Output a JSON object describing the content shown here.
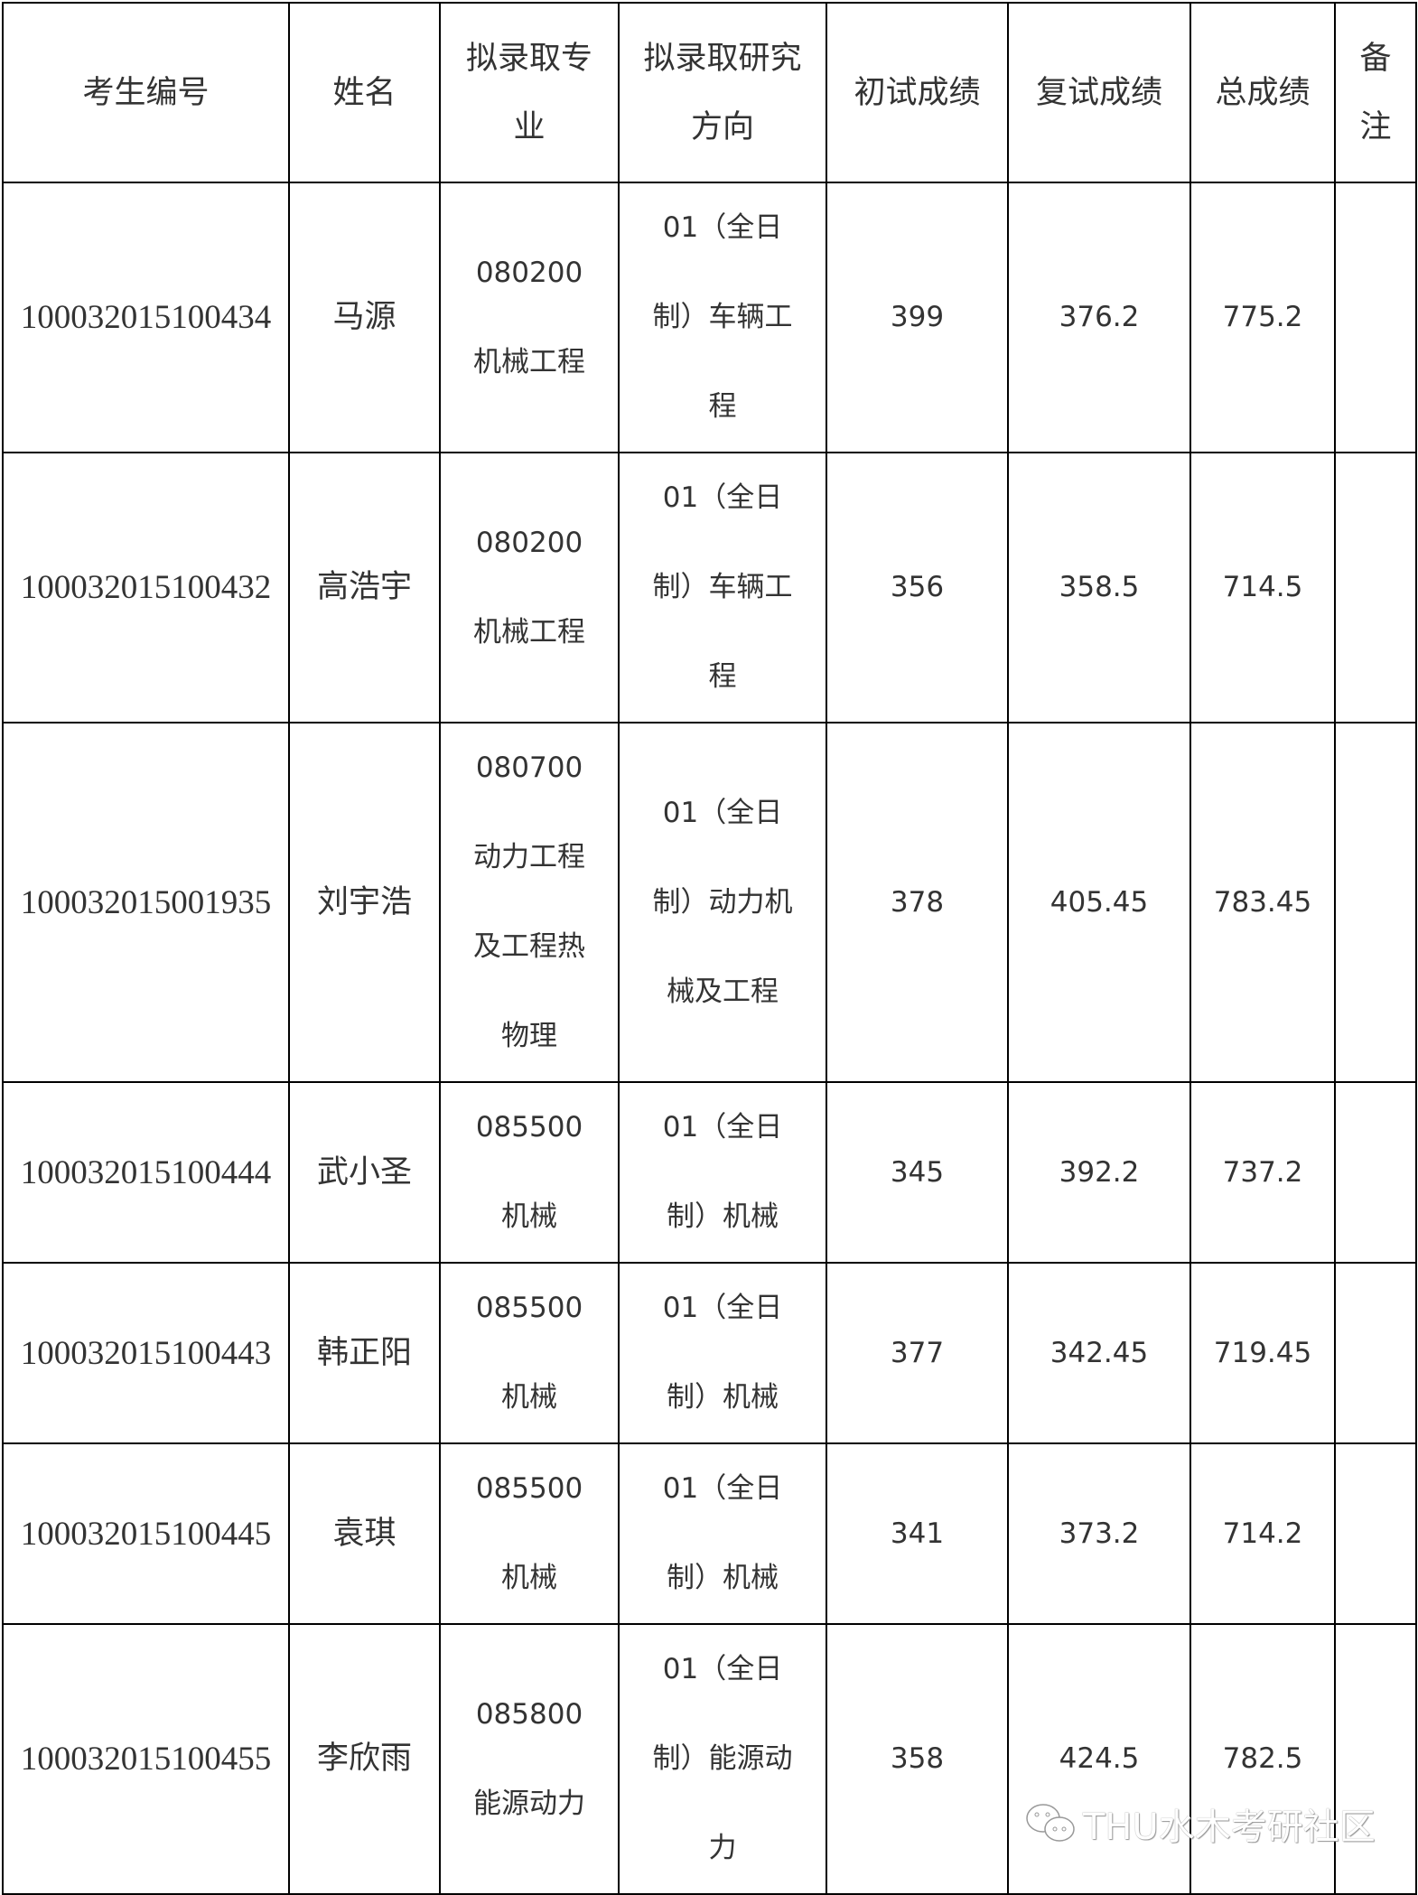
{
  "headers": [
    "考生编号",
    "姓名",
    "拟录取专业",
    "拟录取研究方向",
    "初试成绩",
    "复试成绩",
    "总成绩",
    "备注"
  ],
  "rows": [
    [
      "100032015100434",
      "马源",
      "080200 机械工程",
      "01（全日制）车辆工程",
      "399",
      "376.2",
      "775.2",
      ""
    ],
    [
      "100032015100432",
      "高浩宇",
      "080200 机械工程",
      "01（全日制）车辆工程",
      "356",
      "358.5",
      "714.5",
      ""
    ],
    [
      "100032015001935",
      "刘宇浩",
      "080700 动力工程及工程热物理",
      "01（全日制）动力机械及工程",
      "378",
      "405.45",
      "783.45",
      ""
    ],
    [
      "100032015100444",
      "武小圣",
      "085500 机械",
      "01（全日制）机械",
      "345",
      "392.2",
      "737.2",
      ""
    ],
    [
      "100032015100443",
      "韩正阳",
      "085500 机械",
      "01（全日制）机械",
      "377",
      "342.45",
      "719.45",
      ""
    ],
    [
      "100032015100445",
      "袁琪",
      "085500 机械",
      "01（全日制）机械",
      "341",
      "373.2",
      "714.2",
      ""
    ],
    [
      "100032015100455",
      "李欣雨",
      "085800 能源动力",
      "01（全日制）能源动力",
      "358",
      "424.5",
      "782.5",
      ""
    ]
  ],
  "watermark": {
    "icon": "wechat-icon",
    "text": "THU水木考研社区"
  }
}
